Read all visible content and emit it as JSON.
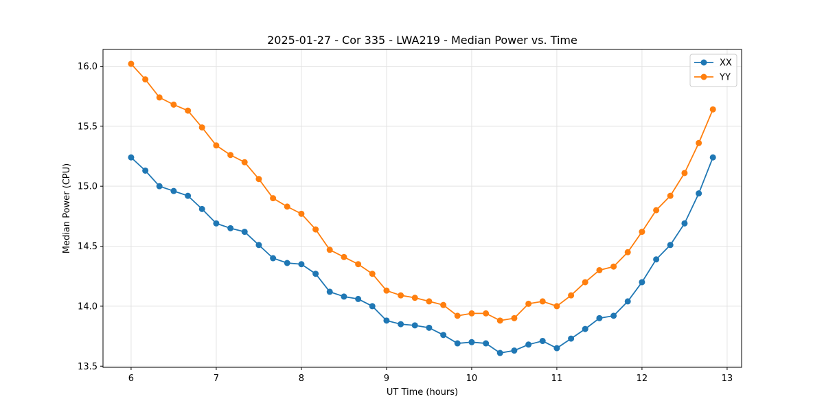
{
  "chart_data": {
    "type": "line",
    "title": "2025-01-27 - Cor 335 - LWA219 - Median Power vs. Time",
    "xlabel": "UT Time (hours)",
    "ylabel": "Median Power (CPU)",
    "xlim": [
      5.67,
      13.17
    ],
    "ylim": [
      13.49,
      16.14
    ],
    "xticks": [
      6,
      7,
      8,
      9,
      10,
      11,
      12,
      13
    ],
    "xtick_labels": [
      "6",
      "7",
      "8",
      "9",
      "10",
      "11",
      "12",
      "13"
    ],
    "yticks": [
      13.5,
      14.0,
      14.5,
      15.0,
      15.5,
      16.0
    ],
    "ytick_labels": [
      "13.5",
      "14.0",
      "14.5",
      "15.0",
      "15.5",
      "16.0"
    ],
    "grid": true,
    "legend_position": "top-right",
    "x": [
      6.0,
      6.167,
      6.333,
      6.5,
      6.667,
      6.833,
      7.0,
      7.167,
      7.333,
      7.5,
      7.667,
      7.833,
      8.0,
      8.167,
      8.333,
      8.5,
      8.667,
      8.833,
      9.0,
      9.167,
      9.333,
      9.5,
      9.667,
      9.833,
      10.0,
      10.167,
      10.333,
      10.5,
      10.667,
      10.833,
      11.0,
      11.167,
      11.333,
      11.5,
      11.667,
      11.833,
      12.0,
      12.167,
      12.333,
      12.5,
      12.667,
      12.833
    ],
    "series": [
      {
        "name": "XX",
        "color": "#1f77b4",
        "values": [
          15.24,
          15.13,
          15.0,
          14.96,
          14.92,
          14.81,
          14.69,
          14.65,
          14.62,
          14.51,
          14.4,
          14.36,
          14.35,
          14.27,
          14.12,
          14.08,
          14.06,
          14.0,
          13.88,
          13.85,
          13.84,
          13.82,
          13.76,
          13.69,
          13.7,
          13.69,
          13.61,
          13.63,
          13.68,
          13.71,
          13.65,
          13.73,
          13.81,
          13.9,
          13.92,
          14.04,
          14.2,
          14.39,
          14.51,
          14.69,
          14.94,
          15.24
        ]
      },
      {
        "name": "YY",
        "color": "#ff7f0e",
        "values": [
          16.02,
          15.89,
          15.74,
          15.68,
          15.63,
          15.49,
          15.34,
          15.26,
          15.2,
          15.06,
          14.9,
          14.83,
          14.77,
          14.64,
          14.47,
          14.41,
          14.35,
          14.27,
          14.13,
          14.09,
          14.07,
          14.04,
          14.01,
          13.92,
          13.94,
          13.94,
          13.88,
          13.9,
          14.02,
          14.04,
          14.0,
          14.09,
          14.2,
          14.3,
          14.33,
          14.45,
          14.62,
          14.8,
          14.92,
          15.11,
          15.36,
          15.64
        ]
      }
    ]
  }
}
